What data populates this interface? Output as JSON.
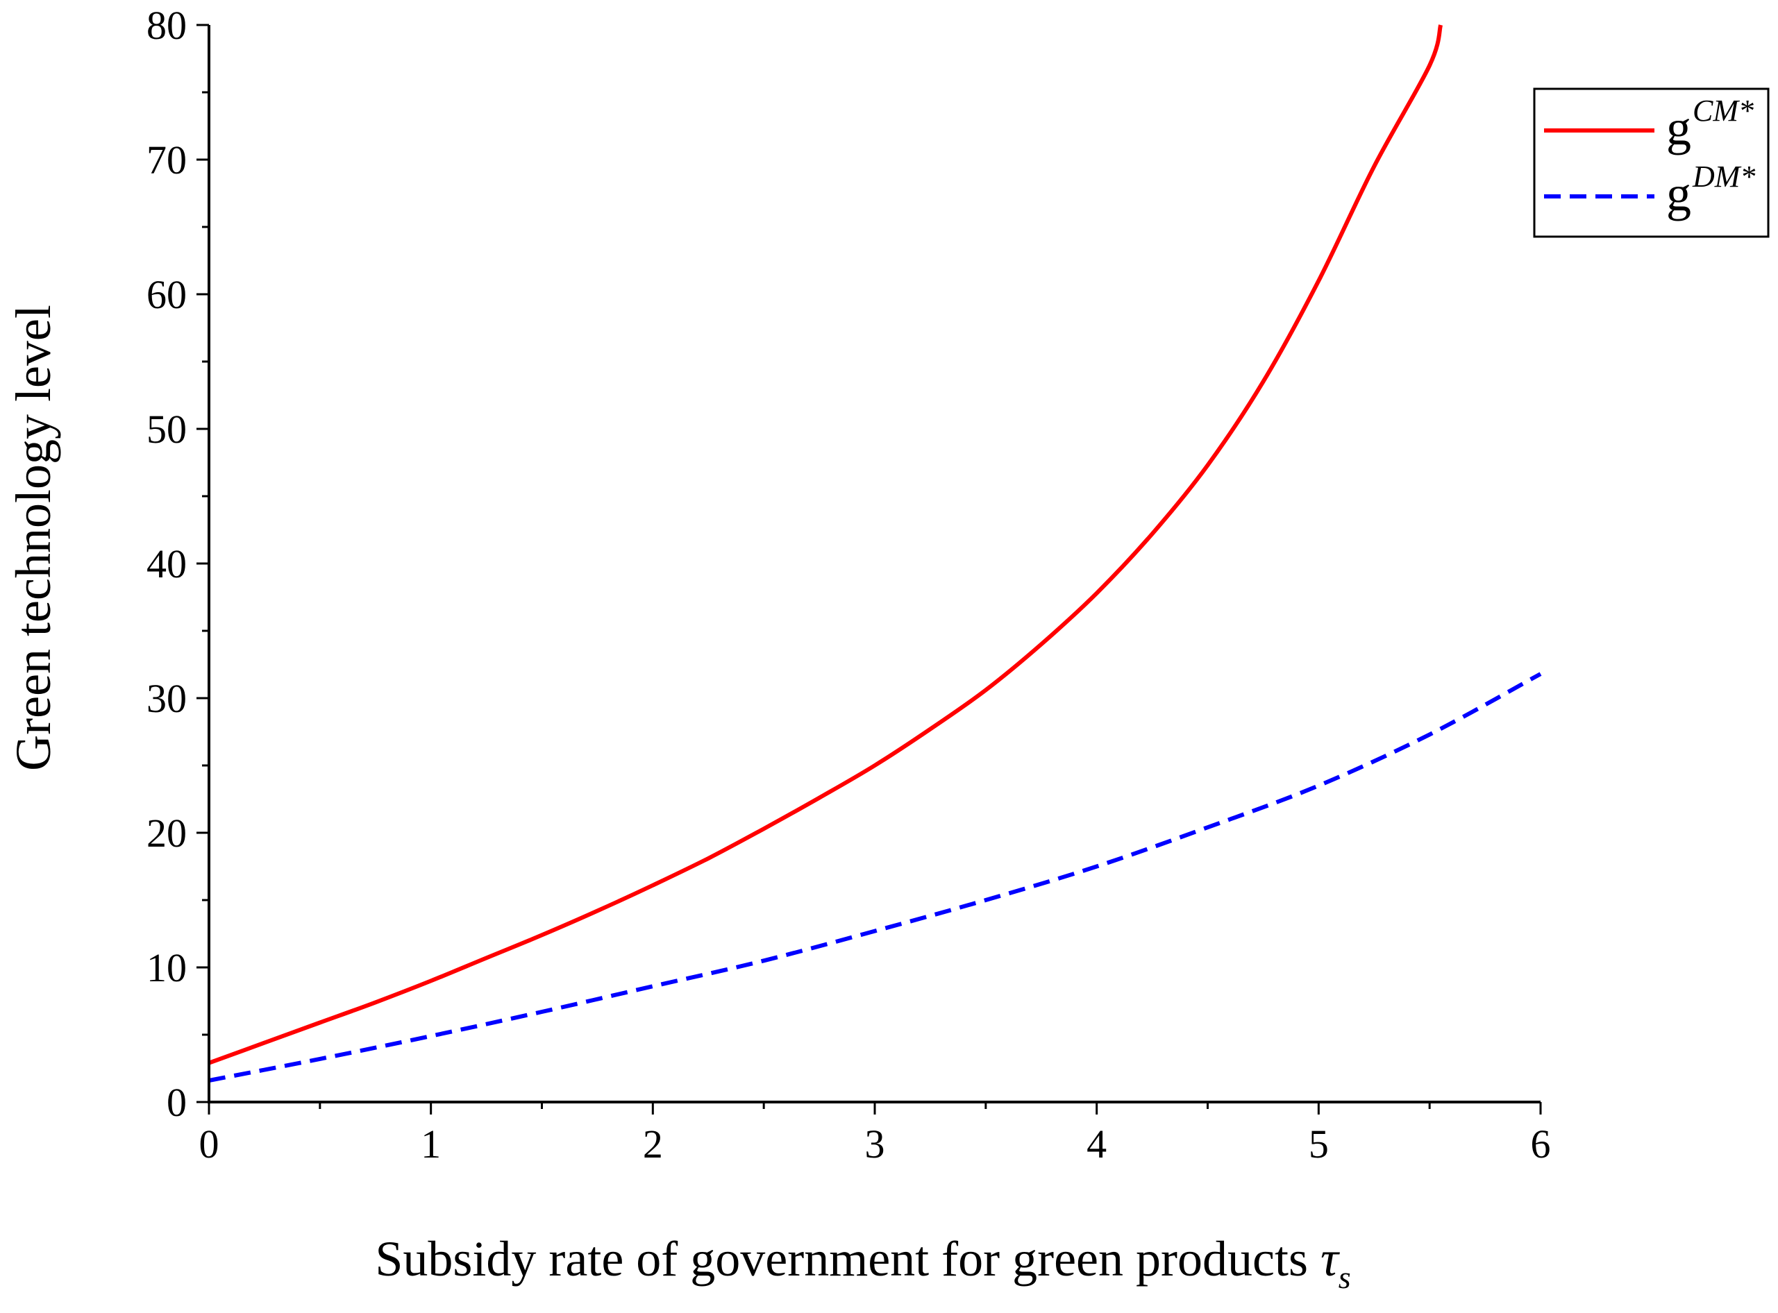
{
  "chart_data": {
    "type": "line",
    "title": "",
    "xlabel": "Subsidy rate of government for green products",
    "xlabel_symbol": "τ",
    "xlabel_symbol_subscript": "s",
    "ylabel": "Green technology level",
    "xlim": [
      0,
      6
    ],
    "ylim": [
      0,
      80
    ],
    "x_ticks": [
      0,
      1,
      2,
      3,
      4,
      5,
      6
    ],
    "x_tick_labels": [
      "0",
      "1",
      "2",
      "3",
      "4",
      "5",
      "6"
    ],
    "y_ticks": [
      0,
      10,
      20,
      30,
      40,
      50,
      60,
      70,
      80
    ],
    "y_tick_labels": [
      "0",
      "10",
      "20",
      "30",
      "40",
      "50",
      "60",
      "70",
      "80"
    ],
    "grid": false,
    "legend_position": "top-right",
    "series": [
      {
        "name": "g^{CM*}",
        "legend_base": "g",
        "legend_sup": "CM*",
        "color": "#ff0000",
        "line_style": "solid",
        "x": [
          0,
          0.25,
          0.5,
          0.75,
          1.0,
          1.25,
          1.5,
          1.75,
          2.0,
          2.25,
          2.5,
          2.75,
          3.0,
          3.25,
          3.5,
          3.75,
          4.0,
          4.25,
          4.5,
          4.75,
          5.0,
          5.25,
          5.5,
          5.55
        ],
        "y": [
          2.9,
          4.4,
          5.9,
          7.4,
          9.0,
          10.7,
          12.4,
          14.2,
          16.1,
          18.1,
          20.3,
          22.6,
          25.0,
          27.7,
          30.6,
          34.0,
          37.8,
          42.2,
          47.3,
          53.5,
          61.0,
          69.5,
          77.0,
          80.0
        ]
      },
      {
        "name": "g^{DM*}",
        "legend_base": "g",
        "legend_sup": "DM*",
        "color": "#0000ff",
        "line_style": "dashed",
        "x": [
          0,
          0.5,
          1.0,
          1.5,
          2.0,
          2.5,
          3.0,
          3.5,
          4.0,
          4.5,
          5.0,
          5.5,
          6.0
        ],
        "y": [
          1.6,
          3.2,
          4.9,
          6.7,
          8.6,
          10.5,
          12.7,
          15.0,
          17.5,
          20.4,
          23.5,
          27.3,
          31.8
        ]
      }
    ]
  }
}
